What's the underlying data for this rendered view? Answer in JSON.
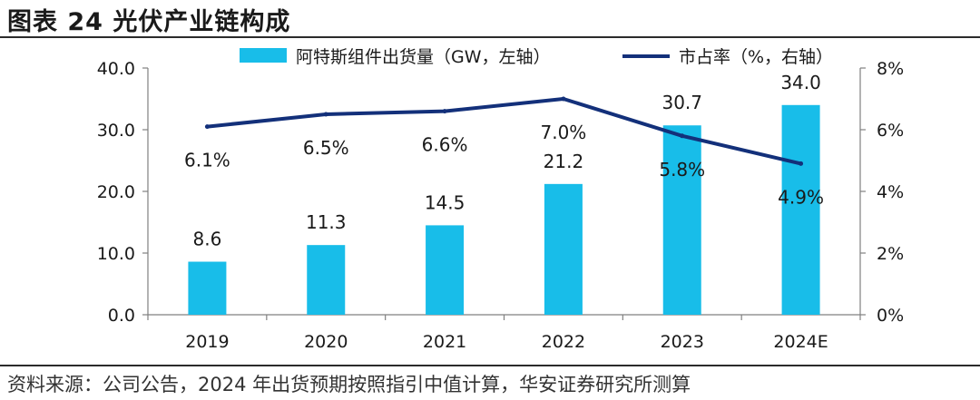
{
  "figure_title": "图表 24 光伏产业链构成",
  "source_note": "资料来源：公司公告，2024 年出货预期按照指引中值计算，华安证券研究所测算",
  "colors": {
    "bar": "#18bde9",
    "line": "#13307a",
    "axis": "#808080",
    "text": "#1a1a1a"
  },
  "chart_data": {
    "type": "bar",
    "categories": [
      "2019",
      "2020",
      "2021",
      "2022",
      "2023",
      "2024E"
    ],
    "series": [
      {
        "name": "阿特斯组件出货量（GW，左轴）",
        "type": "bar",
        "axis": "left",
        "values": [
          8.6,
          11.3,
          14.5,
          21.2,
          30.7,
          34.0
        ],
        "labels": [
          "8.6",
          "11.3",
          "14.5",
          "21.2",
          "30.7",
          "34.0"
        ]
      },
      {
        "name": "市占率（%，右轴）",
        "type": "line",
        "axis": "right",
        "values": [
          6.1,
          6.5,
          6.6,
          7.0,
          5.8,
          4.9
        ],
        "labels": [
          "6.1%",
          "6.5%",
          "6.6%",
          "7.0%",
          "5.8%",
          "4.9%"
        ]
      }
    ],
    "y_left": {
      "min": 0,
      "max": 40,
      "ticks": [
        "0.0",
        "10.0",
        "20.0",
        "30.0",
        "40.0"
      ]
    },
    "y_right": {
      "min": 0,
      "max": 8,
      "ticks": [
        "0%",
        "2%",
        "4%",
        "6%",
        "8%"
      ]
    },
    "legend": "top",
    "grid": false
  }
}
